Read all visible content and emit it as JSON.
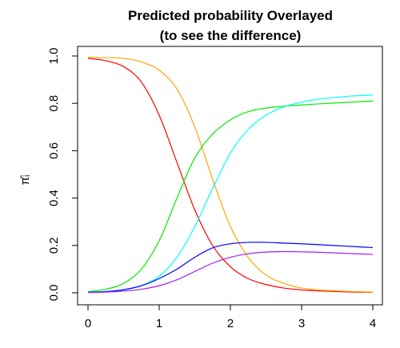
{
  "chart_data": {
    "type": "line",
    "title_lines": [
      "Predicted probability Overlayed",
      "(to see the difference)"
    ],
    "xlabel": "",
    "ylabel": "π̂ᵢ",
    "xlim": [
      0,
      4
    ],
    "ylim": [
      0,
      1
    ],
    "x_ticks": [
      0,
      1,
      2,
      3,
      4
    ],
    "y_ticks": [
      0.0,
      0.2,
      0.4,
      0.6,
      0.8,
      1.0
    ],
    "x_tick_labels": [
      "0",
      "1",
      "2",
      "3",
      "4"
    ],
    "y_tick_labels": [
      "0.0",
      "0.2",
      "0.4",
      "0.6",
      "0.8",
      "1.0"
    ],
    "grid": false,
    "legend": "none",
    "x": [
      0,
      0.25,
      0.5,
      0.75,
      1.0,
      1.25,
      1.5,
      1.75,
      2.0,
      2.25,
      2.5,
      2.75,
      3.0,
      3.25,
      3.5,
      3.75,
      4.0
    ],
    "series": [
      {
        "color": "#ff0000",
        "values": [
          0.99,
          0.98,
          0.955,
          0.89,
          0.75,
          0.55,
          0.35,
          0.2,
          0.11,
          0.06,
          0.035,
          0.02,
          0.012,
          0.008,
          0.005,
          0.003,
          0.002
        ]
      },
      {
        "color": "#ffa500",
        "values": [
          0.995,
          0.993,
          0.99,
          0.975,
          0.94,
          0.86,
          0.7,
          0.48,
          0.28,
          0.15,
          0.075,
          0.04,
          0.02,
          0.012,
          0.008,
          0.005,
          0.003
        ]
      },
      {
        "color": "#00ee00",
        "values": [
          0.005,
          0.015,
          0.04,
          0.1,
          0.22,
          0.4,
          0.57,
          0.67,
          0.73,
          0.765,
          0.78,
          0.788,
          0.793,
          0.798,
          0.802,
          0.806,
          0.81
        ]
      },
      {
        "color": "#00ffff",
        "values": [
          0.002,
          0.005,
          0.012,
          0.03,
          0.07,
          0.15,
          0.28,
          0.44,
          0.59,
          0.69,
          0.75,
          0.785,
          0.805,
          0.818,
          0.826,
          0.832,
          0.835
        ]
      },
      {
        "color": "#0000ff",
        "values": [
          0.002,
          0.005,
          0.013,
          0.03,
          0.06,
          0.1,
          0.15,
          0.19,
          0.207,
          0.213,
          0.213,
          0.21,
          0.207,
          0.203,
          0.199,
          0.195,
          0.191
        ]
      },
      {
        "color": "#a020f0",
        "values": [
          0.001,
          0.003,
          0.007,
          0.015,
          0.03,
          0.055,
          0.09,
          0.125,
          0.15,
          0.165,
          0.172,
          0.174,
          0.173,
          0.171,
          0.168,
          0.165,
          0.162
        ]
      }
    ]
  }
}
